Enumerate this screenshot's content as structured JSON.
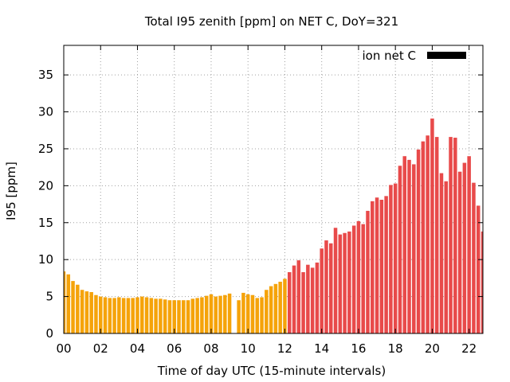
{
  "chart_data": {
    "type": "bar",
    "title": "Total I95 zenith [ppm] on NET C, DoY=321",
    "xlabel": "Time of day UTC (15-minute intervals)",
    "ylabel": "I95 [ppm]",
    "x_ticks": [
      "00",
      "02",
      "04",
      "06",
      "08",
      "10",
      "12",
      "14",
      "16",
      "18",
      "20",
      "22"
    ],
    "y_ticks": [
      "0",
      "5",
      "10",
      "15",
      "20",
      "25",
      "30",
      "35"
    ],
    "xlim": [
      0,
      22.75
    ],
    "ylim": [
      0,
      39
    ],
    "grid": true,
    "legend": {
      "label": "ion net C",
      "position": "top-right",
      "color": "#000000"
    },
    "colors": {
      "early": "#f5a30a",
      "late": "#e84a4a"
    },
    "bar_interval_hours": 0.25,
    "series": [
      {
        "color_key": "early",
        "points": [
          [
            0.0,
            8.4
          ],
          [
            0.25,
            8.0
          ],
          [
            0.5,
            7.1
          ],
          [
            0.75,
            6.6
          ],
          [
            1.0,
            5.9
          ],
          [
            1.25,
            5.7
          ],
          [
            1.5,
            5.6
          ],
          [
            1.75,
            5.2
          ],
          [
            2.0,
            5.0
          ],
          [
            2.25,
            4.9
          ],
          [
            2.5,
            4.8
          ],
          [
            2.75,
            4.8
          ],
          [
            3.0,
            4.9
          ],
          [
            3.25,
            4.8
          ],
          [
            3.5,
            4.8
          ],
          [
            3.75,
            4.8
          ],
          [
            4.0,
            4.9
          ],
          [
            4.25,
            5.0
          ],
          [
            4.5,
            4.9
          ],
          [
            4.75,
            4.8
          ],
          [
            5.0,
            4.7
          ],
          [
            5.25,
            4.7
          ],
          [
            5.5,
            4.6
          ],
          [
            5.75,
            4.5
          ],
          [
            6.0,
            4.5
          ],
          [
            6.25,
            4.5
          ],
          [
            6.5,
            4.5
          ],
          [
            6.75,
            4.5
          ],
          [
            7.0,
            4.7
          ],
          [
            7.25,
            4.8
          ],
          [
            7.5,
            4.9
          ],
          [
            7.75,
            5.1
          ],
          [
            8.0,
            5.3
          ],
          [
            8.25,
            5.0
          ],
          [
            8.5,
            5.1
          ],
          [
            8.75,
            5.2
          ],
          [
            9.0,
            5.4
          ],
          [
            9.5,
            4.5
          ],
          [
            9.75,
            5.5
          ],
          [
            10.0,
            5.3
          ],
          [
            10.25,
            5.2
          ],
          [
            10.5,
            4.8
          ],
          [
            10.75,
            4.9
          ],
          [
            11.0,
            5.9
          ],
          [
            11.25,
            6.4
          ],
          [
            11.5,
            6.7
          ],
          [
            11.75,
            7.0
          ],
          [
            12.0,
            7.4
          ]
        ]
      },
      {
        "color_key": "late",
        "points": [
          [
            12.25,
            8.3
          ],
          [
            12.5,
            9.2
          ],
          [
            12.75,
            9.9
          ],
          [
            13.0,
            8.3
          ],
          [
            13.25,
            9.3
          ],
          [
            13.5,
            8.9
          ],
          [
            13.75,
            9.6
          ],
          [
            14.0,
            11.5
          ],
          [
            14.25,
            12.6
          ],
          [
            14.5,
            12.2
          ],
          [
            14.75,
            14.3
          ],
          [
            15.0,
            13.4
          ],
          [
            15.25,
            13.6
          ],
          [
            15.5,
            13.8
          ],
          [
            15.75,
            14.6
          ],
          [
            16.0,
            15.2
          ],
          [
            16.25,
            14.8
          ],
          [
            16.5,
            16.6
          ],
          [
            16.75,
            17.9
          ],
          [
            17.0,
            18.4
          ],
          [
            17.25,
            18.1
          ],
          [
            17.5,
            18.6
          ],
          [
            17.75,
            20.1
          ],
          [
            18.0,
            20.3
          ],
          [
            18.25,
            22.7
          ],
          [
            18.5,
            24.0
          ],
          [
            18.75,
            23.5
          ],
          [
            19.0,
            22.9
          ],
          [
            19.25,
            24.9
          ],
          [
            19.5,
            26.0
          ],
          [
            19.75,
            26.8
          ],
          [
            20.0,
            29.1
          ],
          [
            20.25,
            26.6
          ],
          [
            20.5,
            21.7
          ],
          [
            20.75,
            20.6
          ],
          [
            21.0,
            26.6
          ],
          [
            21.25,
            26.5
          ],
          [
            21.5,
            21.9
          ],
          [
            21.75,
            23.1
          ],
          [
            22.0,
            24.0
          ],
          [
            22.25,
            20.4
          ],
          [
            22.5,
            17.3
          ],
          [
            22.75,
            13.8
          ]
        ]
      }
    ]
  }
}
